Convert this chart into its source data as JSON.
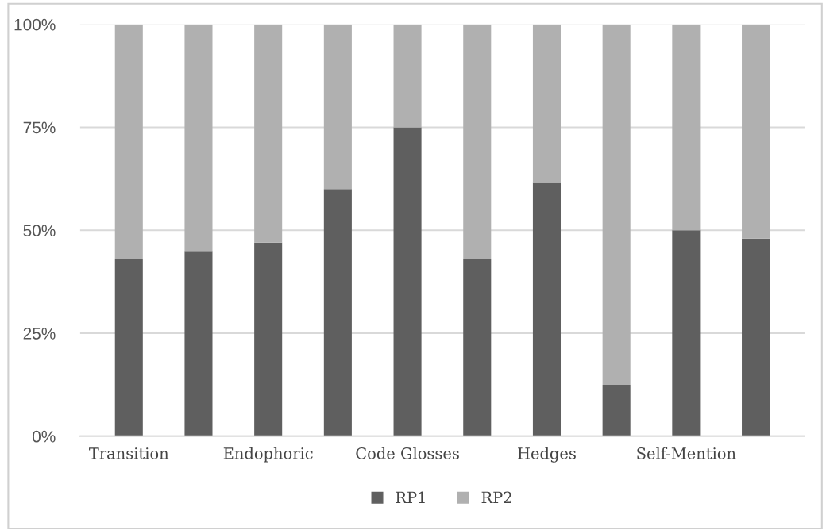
{
  "chart_data": {
    "type": "bar",
    "stacked": true,
    "categories": [
      "Transition",
      null,
      "Endophoric",
      null,
      "Code Glosses",
      null,
      "Hedges",
      null,
      "Self-Mention",
      null
    ],
    "series": [
      {
        "name": "RP1",
        "color": "#5f5f5f",
        "values": [
          43,
          45,
          47,
          60,
          75,
          43,
          61.5,
          12.5,
          50,
          48
        ]
      },
      {
        "name": "RP2",
        "color": "#b0b0b0",
        "values": [
          57,
          55,
          53,
          40,
          25,
          57,
          38.5,
          87.5,
          50,
          52
        ]
      }
    ],
    "ylim": [
      0,
      100
    ],
    "yticks": [
      {
        "value": 0,
        "label": "0%"
      },
      {
        "value": 25,
        "label": "25%"
      },
      {
        "value": 50,
        "label": "50%"
      },
      {
        "value": 75,
        "label": "75%"
      },
      {
        "value": 100,
        "label": "100%"
      }
    ],
    "grid": "y",
    "legend": "bottom"
  }
}
